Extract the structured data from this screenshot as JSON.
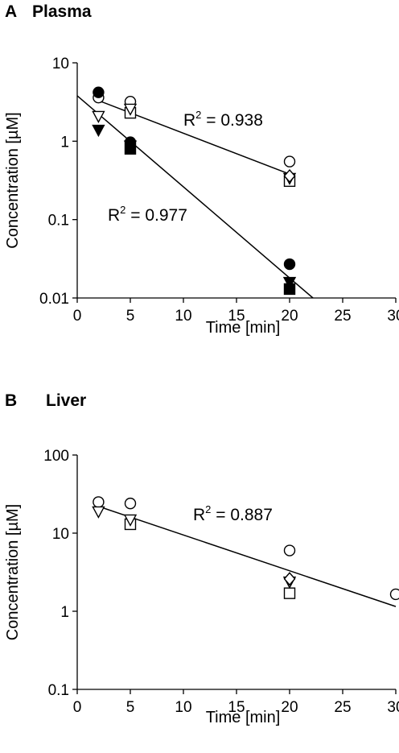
{
  "chart_data": [
    {
      "panel_label": "A",
      "title": "Plasma",
      "type": "scatter",
      "xlabel": "Time [min]",
      "ylabel": "Concentration [µM]",
      "y_scale": "log",
      "xlim": [
        0,
        30
      ],
      "ylim": [
        0.01,
        10
      ],
      "x_ticks": [
        "0",
        "5",
        "10",
        "15",
        "20",
        "25",
        "30"
      ],
      "y_ticks": [
        "0.01",
        "0.1",
        "1",
        "10"
      ],
      "grid": false,
      "series": [
        {
          "marker": "circle-open",
          "points": [
            [
              2,
              3.6
            ],
            [
              5,
              3.2
            ],
            [
              20,
              0.55
            ]
          ]
        },
        {
          "marker": "square-open",
          "points": [
            [
              5,
              2.3
            ],
            [
              20,
              0.31
            ]
          ]
        },
        {
          "marker": "triangle-down-open",
          "points": [
            [
              2,
              2.1
            ],
            [
              5,
              2.6
            ],
            [
              20,
              0.34
            ]
          ]
        },
        {
          "marker": "diamond-open",
          "points": [
            [
              20,
              0.36
            ]
          ]
        },
        {
          "marker": "circle-filled",
          "points": [
            [
              2,
              4.2
            ],
            [
              5,
              0.97
            ],
            [
              20,
              0.027
            ]
          ]
        },
        {
          "marker": "square-filled",
          "points": [
            [
              5,
              0.8
            ],
            [
              20,
              0.013
            ]
          ]
        },
        {
          "marker": "triangle-down-filled",
          "points": [
            [
              2,
              1.4
            ],
            [
              5,
              0.88
            ],
            [
              20,
              0.016
            ]
          ]
        }
      ],
      "fits": [
        {
          "label": "R2 = 0.938",
          "x": [
            2,
            20
          ],
          "y": [
            3.3,
            0.38
          ]
        },
        {
          "label": "R2 = 0.977",
          "x": [
            0,
            22.2
          ],
          "y": [
            3.8,
            0.01
          ]
        }
      ]
    },
    {
      "panel_label": "B",
      "title": "Liver",
      "type": "scatter",
      "xlabel": "Time [min]",
      "ylabel": "Concentration [µM]",
      "y_scale": "log",
      "xlim": [
        0,
        30
      ],
      "ylim": [
        0.1,
        100
      ],
      "x_ticks": [
        "0",
        "5",
        "10",
        "15",
        "20",
        "25",
        "30"
      ],
      "y_ticks": [
        "0.1",
        "1",
        "10",
        "100"
      ],
      "grid": false,
      "series": [
        {
          "marker": "circle-open",
          "points": [
            [
              2,
              25
            ],
            [
              5,
              24
            ],
            [
              20,
              6.0
            ],
            [
              30,
              1.65
            ]
          ]
        },
        {
          "marker": "square-open",
          "points": [
            [
              5,
              13
            ],
            [
              20,
              1.7
            ]
          ]
        },
        {
          "marker": "triangle-down-open",
          "points": [
            [
              2,
              19
            ],
            [
              5,
              15
            ],
            [
              20,
              2.4
            ]
          ]
        },
        {
          "marker": "diamond-open",
          "points": [
            [
              20,
              2.6
            ]
          ]
        }
      ],
      "fits": [
        {
          "label": "R2 = 0.887",
          "x": [
            2,
            30
          ],
          "y": [
            22,
            1.15
          ]
        }
      ]
    }
  ]
}
